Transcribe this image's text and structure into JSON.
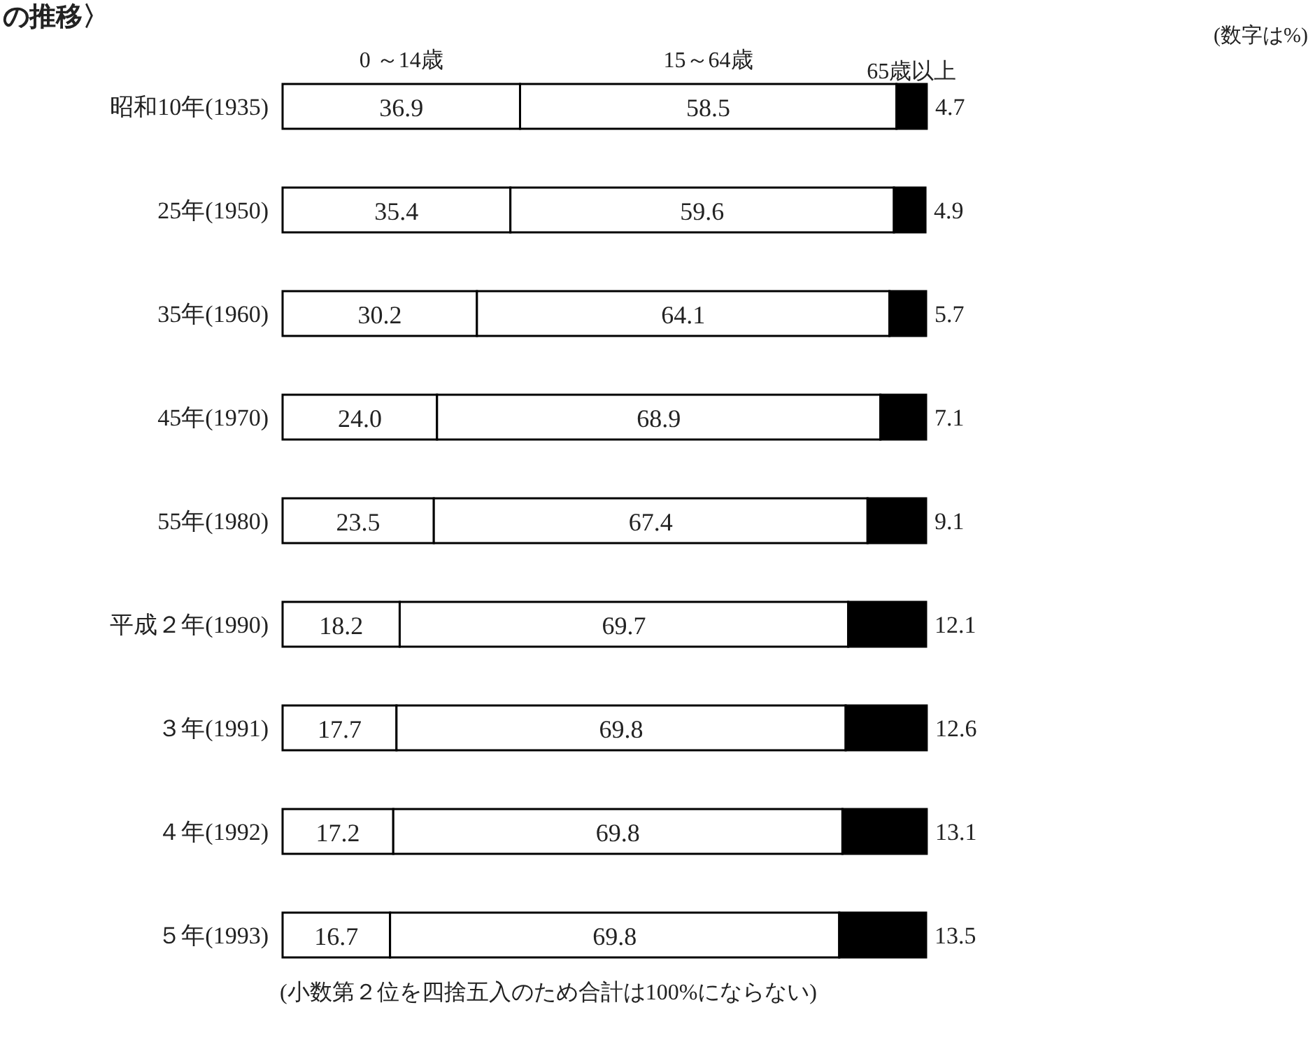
{
  "chart_data": {
    "type": "bar",
    "orientation": "horizontal",
    "stacked": true,
    "title": "の推移〉",
    "annotations": [
      "(数字は%)",
      "(小数第２位を四捨五入のため合計は100%にならない)"
    ],
    "categories": [
      "昭和10年(1935)",
      "25年(1950)",
      "35年(1960)",
      "45年(1970)",
      "55年(1980)",
      "平成２年(1990)",
      "３年(1991)",
      "４年(1992)",
      "５年(1993)"
    ],
    "series": [
      {
        "name": "0 ～14歳",
        "color": "#ffffff",
        "values": [
          36.9,
          35.4,
          30.2,
          24.0,
          23.5,
          18.2,
          17.7,
          17.2,
          16.7
        ],
        "value_labels": [
          "36.9",
          "35.4",
          "30.2",
          "24.0",
          "23.5",
          "18.2",
          "17.7",
          "17.2",
          "16.7"
        ]
      },
      {
        "name": "15～64歳",
        "color": "#ffffff",
        "values": [
          58.5,
          59.6,
          64.1,
          68.9,
          67.4,
          69.7,
          69.8,
          69.8,
          69.8
        ],
        "value_labels": [
          "58.5",
          "59.6",
          "64.1",
          "68.9",
          "67.4",
          "69.7",
          "69.8",
          "69.8",
          "69.8"
        ]
      },
      {
        "name": "65歳以上",
        "color": "#000000",
        "values": [
          4.7,
          4.9,
          5.7,
          7.1,
          9.1,
          12.1,
          12.6,
          13.1,
          13.5
        ],
        "value_labels": [
          "4.7",
          "4.9",
          "5.7",
          "7.1",
          "9.1",
          "12.1",
          "12.6",
          "13.1",
          "13.5"
        ]
      }
    ]
  }
}
